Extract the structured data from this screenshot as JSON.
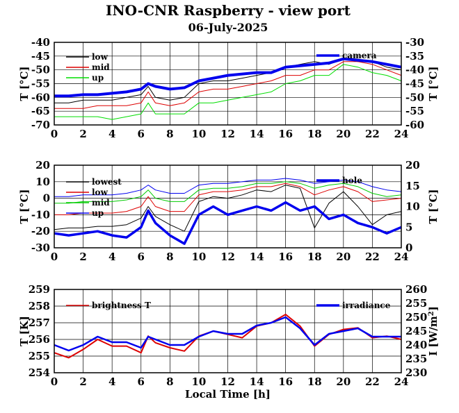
{
  "title": "INO-CNR Raspberry - view port",
  "subtitle": "06-July-2025",
  "chart_data": [
    {
      "type": "line",
      "x_range": [
        0,
        24
      ],
      "x_ticks": [
        0,
        2,
        4,
        6,
        8,
        10,
        12,
        14,
        16,
        18,
        20,
        22,
        24
      ],
      "ylabel": "T [°C]",
      "ylim": [
        -70,
        -40
      ],
      "y_ticks": [
        -70,
        -65,
        -60,
        -55,
        -50,
        -45,
        -40
      ],
      "y2label": "T [°C]",
      "y2lim": [
        -60,
        -30
      ],
      "y2_ticks": [
        -60,
        -55,
        -50,
        -45,
        -40,
        -35,
        -30
      ],
      "grid": true,
      "series": [
        {
          "name": "low",
          "color": "#000000",
          "axis": "left",
          "x": [
            0,
            1,
            2,
            3,
            4,
            5,
            6,
            6.5,
            7,
            8,
            9,
            10,
            11,
            12,
            13,
            14,
            15,
            16,
            17,
            18,
            19,
            20,
            21,
            22,
            23,
            24
          ],
          "y": [
            -62,
            -62,
            -61,
            -61,
            -61,
            -60,
            -59,
            -56,
            -60,
            -61,
            -60,
            -55,
            -54,
            -54,
            -53,
            -52,
            -51,
            -49,
            -48,
            -47,
            -48,
            -46,
            -47,
            -47,
            -49,
            -50
          ]
        },
        {
          "name": "mid",
          "color": "#dd0000",
          "axis": "left",
          "x": [
            0,
            1,
            2,
            3,
            4,
            5,
            6,
            6.5,
            7,
            8,
            9,
            10,
            11,
            12,
            13,
            14,
            15,
            16,
            17,
            18,
            19,
            20,
            21,
            22,
            23,
            24
          ],
          "y": [
            -64,
            -64,
            -64,
            -63,
            -63,
            -63,
            -62,
            -58,
            -62,
            -63,
            -62,
            -58,
            -57,
            -57,
            -56,
            -55,
            -54,
            -52,
            -52,
            -50,
            -50,
            -47,
            -47,
            -48,
            -50,
            -52
          ]
        },
        {
          "name": "up",
          "color": "#00dd00",
          "axis": "left",
          "x": [
            0,
            1,
            2,
            3,
            4,
            5,
            6,
            6.5,
            7,
            8,
            9,
            10,
            11,
            12,
            13,
            14,
            15,
            16,
            17,
            18,
            19,
            20,
            21,
            22,
            23,
            24
          ],
          "y": [
            -67,
            -67,
            -67,
            -67,
            -68,
            -67,
            -66,
            -62,
            -66,
            -66,
            -66,
            -62,
            -62,
            -61,
            -60,
            -59,
            -58,
            -55,
            -54,
            -52,
            -52,
            -48,
            -49,
            -51,
            -52,
            -54
          ]
        },
        {
          "name": "camera",
          "color": "#0000ee",
          "axis": "right",
          "x": [
            0,
            1,
            2,
            3,
            4,
            5,
            6,
            6.5,
            7,
            8,
            9,
            10,
            11,
            12,
            13,
            14,
            15,
            16,
            17,
            18,
            19,
            20,
            21,
            22,
            23,
            24
          ],
          "y": [
            -49.5,
            -49.5,
            -49,
            -49,
            -48.5,
            -48,
            -47,
            -45,
            -46,
            -47,
            -46.5,
            -44,
            -43,
            -42,
            -41.5,
            -41,
            -41,
            -39,
            -38.5,
            -38,
            -37.5,
            -36,
            -36.5,
            -37,
            -38,
            -39
          ]
        }
      ]
    },
    {
      "type": "line",
      "x_range": [
        0,
        24
      ],
      "x_ticks": [
        0,
        2,
        4,
        6,
        8,
        10,
        12,
        14,
        16,
        18,
        20,
        22,
        24
      ],
      "ylabel": "T [°C]",
      "ylim": [
        -30,
        20
      ],
      "y_ticks": [
        -30,
        -20,
        -10,
        0,
        10,
        20
      ],
      "y2label": "T [°C]",
      "y2lim": [
        0,
        20
      ],
      "y2_ticks": [
        0,
        5,
        10,
        15,
        20
      ],
      "grid": true,
      "series": [
        {
          "name": "lowest",
          "color": "#000000",
          "axis": "left",
          "x": [
            0,
            1,
            2,
            3,
            4,
            5,
            6,
            6.5,
            7,
            8,
            9,
            10,
            11,
            12,
            13,
            14,
            15,
            16,
            17,
            18,
            19,
            20,
            21,
            22,
            23,
            24
          ],
          "y": [
            -19,
            -18,
            -18,
            -17,
            -17,
            -16,
            -12,
            -5,
            -11,
            -16,
            -20,
            -2,
            1,
            0,
            2,
            5,
            4,
            8,
            6,
            -18,
            -3,
            4,
            -5,
            -16,
            -10,
            -8
          ]
        },
        {
          "name": "low",
          "color": "#dd0000",
          "axis": "left",
          "x": [
            0,
            1,
            2,
            3,
            4,
            5,
            6,
            6.5,
            7,
            8,
            9,
            10,
            11,
            12,
            13,
            14,
            15,
            16,
            17,
            18,
            19,
            20,
            21,
            22,
            23,
            24
          ],
          "y": [
            -10,
            -10,
            -9,
            -9,
            -9,
            -8,
            -5,
            1,
            -5,
            -8,
            -8,
            2,
            4,
            4,
            5,
            7,
            7,
            9,
            7,
            2,
            5,
            7,
            4,
            -2,
            -1,
            0
          ]
        },
        {
          "name": "mid",
          "color": "#00cc00",
          "axis": "left",
          "x": [
            0,
            1,
            2,
            3,
            4,
            5,
            6,
            6.5,
            7,
            8,
            9,
            10,
            11,
            12,
            13,
            14,
            15,
            16,
            17,
            18,
            19,
            20,
            21,
            22,
            23,
            24
          ],
          "y": [
            -3,
            -3,
            -2,
            -2,
            -2,
            -1,
            1,
            5,
            0,
            -2,
            -2,
            5,
            6,
            6,
            7,
            9,
            9,
            10,
            9,
            6,
            8,
            9,
            7,
            3,
            1,
            2
          ]
        },
        {
          "name": "up",
          "color": "#0000ee",
          "axis": "left",
          "x": [
            0,
            1,
            2,
            3,
            4,
            5,
            6,
            6.5,
            7,
            8,
            9,
            10,
            11,
            12,
            13,
            14,
            15,
            16,
            17,
            18,
            19,
            20,
            21,
            22,
            23,
            24
          ],
          "y": [
            1,
            1,
            2,
            2,
            2,
            3,
            5,
            8,
            5,
            3,
            3,
            8,
            9,
            9,
            10,
            11,
            11,
            12,
            11,
            9,
            10,
            11,
            10,
            7,
            5,
            4
          ]
        },
        {
          "name": "hole",
          "color": "#0000ee",
          "axis": "right",
          "x": [
            0,
            1,
            2,
            3,
            4,
            5,
            6,
            6.5,
            7,
            8,
            9,
            10,
            11,
            12,
            13,
            14,
            15,
            16,
            17,
            18,
            19,
            20,
            21,
            22,
            23,
            24
          ],
          "y": [
            3.5,
            3,
            3.5,
            4,
            3,
            2.5,
            5,
            9,
            6,
            3,
            1,
            8,
            10,
            8,
            9,
            10,
            9,
            11,
            9,
            10,
            7,
            8,
            6,
            5,
            3.5,
            5
          ]
        }
      ]
    },
    {
      "type": "line",
      "x_range": [
        0,
        24
      ],
      "x_ticks": [
        0,
        2,
        4,
        6,
        8,
        10,
        12,
        14,
        16,
        18,
        20,
        22,
        24
      ],
      "xlabel": "Local Time [h]",
      "ylabel": "T [K]",
      "ylim": [
        254,
        259
      ],
      "y_ticks": [
        254,
        255,
        256,
        257,
        258,
        259
      ],
      "y2label": "I [W/m2]",
      "y2lim": [
        230,
        260
      ],
      "y2_ticks": [
        230,
        235,
        240,
        245,
        250,
        255,
        260
      ],
      "grid": true,
      "series": [
        {
          "name": "brightness T",
          "color": "#dd0000",
          "axis": "left",
          "x": [
            0,
            1,
            2,
            3,
            4,
            5,
            6,
            6.5,
            7,
            8,
            9,
            10,
            11,
            12,
            13,
            14,
            15,
            16,
            17,
            18,
            19,
            20,
            21,
            22,
            23,
            24
          ],
          "y": [
            255.2,
            254.9,
            255.4,
            256.0,
            255.6,
            255.6,
            255.2,
            256.2,
            255.8,
            255.5,
            255.3,
            256.2,
            256.5,
            256.3,
            256.1,
            256.8,
            257.0,
            257.5,
            256.8,
            255.6,
            256.3,
            256.6,
            256.7,
            256.1,
            256.2,
            256.0
          ]
        },
        {
          "name": "irradiance",
          "color": "#0000ee",
          "axis": "right",
          "x": [
            0,
            1,
            2,
            3,
            4,
            5,
            6,
            6.5,
            7,
            8,
            9,
            10,
            11,
            12,
            13,
            14,
            15,
            16,
            17,
            18,
            19,
            20,
            21,
            22,
            23,
            24
          ],
          "y": [
            240,
            238,
            240,
            243,
            241,
            241,
            239,
            243,
            242,
            240,
            240,
            243,
            245,
            244,
            244,
            247,
            248,
            250,
            246,
            240,
            244,
            245,
            246,
            243,
            243,
            243
          ]
        }
      ]
    }
  ]
}
